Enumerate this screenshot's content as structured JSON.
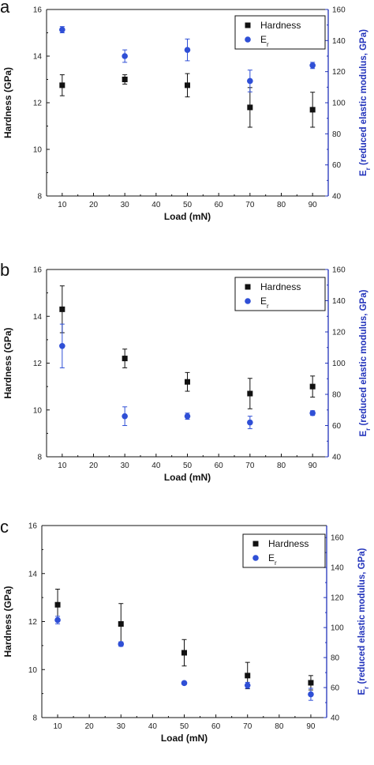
{
  "colors": {
    "hardness": "#111111",
    "modulus": "#2f4fd6",
    "right_axis": "#2233bb",
    "left_axis": "#111111"
  },
  "chart_data": [
    {
      "panel": "a",
      "type": "scatter",
      "xlabel": "Load (mN)",
      "ylabel_left": "Hardness (GPa)",
      "ylabel_right_prefix": "E",
      "ylabel_right_sub": "r",
      "ylabel_right_rest": " (reduced elastic modulus, GPa)",
      "xlim": [
        5,
        95
      ],
      "xticks": [
        10,
        20,
        30,
        40,
        50,
        60,
        70,
        80,
        90
      ],
      "ylim_left": [
        8,
        16
      ],
      "yticks_left": [
        8,
        10,
        12,
        14,
        16
      ],
      "ylim_right": [
        40,
        160
      ],
      "yticks_right": [
        40,
        60,
        80,
        100,
        120,
        140,
        160
      ],
      "legend": {
        "placement": "top-right",
        "entries": [
          {
            "marker": "square",
            "series": "hardness",
            "label": "Hardness"
          },
          {
            "marker": "circle",
            "series": "modulus",
            "label_main": "E",
            "label_sub": "r"
          }
        ]
      },
      "series": [
        {
          "key": "hardness",
          "axis": "left",
          "marker": "square",
          "x": [
            10,
            30,
            50,
            70,
            90
          ],
          "y": [
            12.75,
            13.0,
            12.75,
            11.8,
            11.7
          ],
          "err": [
            0.45,
            0.2,
            0.5,
            0.85,
            0.75
          ]
        },
        {
          "key": "modulus",
          "axis": "right",
          "marker": "circle",
          "x": [
            10,
            30,
            50,
            70,
            90
          ],
          "y": [
            147,
            130,
            134,
            114,
            124
          ],
          "err": [
            2,
            4,
            7,
            7,
            2
          ]
        }
      ]
    },
    {
      "panel": "b",
      "type": "scatter",
      "xlabel": "Load (mN)",
      "ylabel_left": "Hardness (GPa)",
      "ylabel_right_prefix": "E",
      "ylabel_right_sub": "r",
      "ylabel_right_rest": " (reduced elastic modulus, GPa)",
      "xlim": [
        5,
        95
      ],
      "xticks": [
        10,
        20,
        30,
        40,
        50,
        60,
        70,
        80,
        90
      ],
      "ylim_left": [
        8,
        16
      ],
      "yticks_left": [
        8,
        10,
        12,
        14,
        16
      ],
      "ylim_right": [
        40,
        160
      ],
      "yticks_right": [
        40,
        60,
        80,
        100,
        120,
        140,
        160
      ],
      "legend": {
        "placement": "top-right",
        "entries": [
          {
            "marker": "square",
            "series": "hardness",
            "label": "Hardness"
          },
          {
            "marker": "circle",
            "series": "modulus",
            "label_main": "E",
            "label_sub": "r"
          }
        ]
      },
      "series": [
        {
          "key": "hardness",
          "axis": "left",
          "marker": "square",
          "x": [
            10,
            30,
            50,
            70,
            90
          ],
          "y": [
            14.3,
            12.2,
            11.2,
            10.7,
            11.0
          ],
          "err": [
            1.0,
            0.4,
            0.4,
            0.65,
            0.45
          ]
        },
        {
          "key": "modulus",
          "axis": "right",
          "marker": "circle",
          "x": [
            10,
            30,
            50,
            70,
            90
          ],
          "y": [
            111,
            66,
            66,
            62,
            68
          ],
          "err": [
            14,
            6,
            2,
            4,
            1.5
          ]
        }
      ]
    },
    {
      "panel": "c",
      "type": "scatter",
      "xlabel": "Load (mN)",
      "ylabel_left": "Hardness (GPa)",
      "ylabel_right_prefix": "E",
      "ylabel_right_sub": "r",
      "ylabel_right_rest": " (reduced elastic modulus, GPa)",
      "xlim": [
        5,
        95
      ],
      "xticks": [
        10,
        20,
        30,
        40,
        50,
        60,
        70,
        80,
        90
      ],
      "ylim_left": [
        8,
        16
      ],
      "yticks_left": [
        8,
        10,
        12,
        14,
        16
      ],
      "ylim_right": [
        40,
        168
      ],
      "yticks_right": [
        40,
        60,
        80,
        100,
        120,
        140,
        160
      ],
      "legend": {
        "placement": "top-right",
        "entries": [
          {
            "marker": "square",
            "series": "hardness",
            "label": "Hardness"
          },
          {
            "marker": "circle",
            "series": "modulus",
            "label_main": "E",
            "label_sub": "r"
          }
        ]
      },
      "series": [
        {
          "key": "hardness",
          "axis": "left",
          "marker": "square",
          "x": [
            10,
            30,
            50,
            70,
            90
          ],
          "y": [
            12.7,
            11.9,
            10.7,
            9.75,
            9.45
          ],
          "err": [
            0.65,
            0.85,
            0.55,
            0.55,
            0.3
          ]
        },
        {
          "key": "modulus",
          "axis": "right",
          "marker": "circle",
          "x": [
            10,
            30,
            50,
            70,
            90
          ],
          "y": [
            105,
            89,
            63,
            61.5,
            55.5
          ],
          "err": [
            2.5,
            1.5,
            1,
            2,
            4
          ]
        }
      ]
    }
  ]
}
